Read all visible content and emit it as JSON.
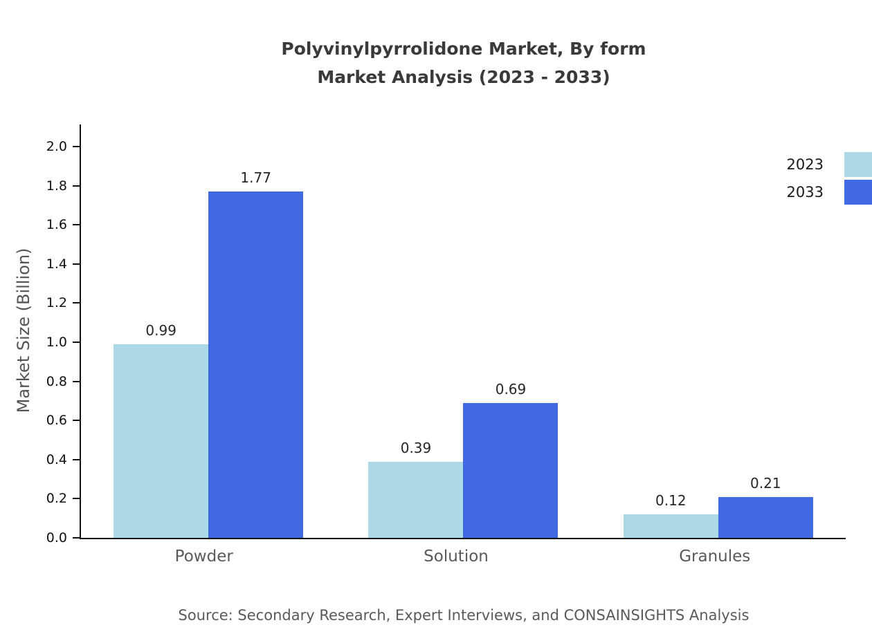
{
  "title": {
    "line1": "Polyvinylpyrrolidone Market, By form",
    "line2": "Market Analysis (2023 - 2033)"
  },
  "source": "Source: Secondary Research, Expert Interviews, and CONSAINSIGHTS Analysis",
  "chart_data": {
    "type": "bar",
    "title": "Polyvinylpyrrolidone Market, By form Market Analysis (2023 - 2033)",
    "categories": [
      "Powder",
      "Solution",
      "Granules"
    ],
    "series": [
      {
        "name": "2023",
        "color": "#ADD8E6",
        "values": [
          0.99,
          0.39,
          0.12
        ]
      },
      {
        "name": "2033",
        "color": "#4169E1",
        "values": [
          1.77,
          0.69,
          0.21
        ]
      }
    ],
    "xlabel": "",
    "ylabel": "Market Size (Billion)",
    "ylim": [
      0,
      2.12
    ],
    "yticks": [
      0.0,
      0.2,
      0.4,
      0.6,
      0.8,
      1.0,
      1.2,
      1.4,
      1.6,
      1.8,
      2.0
    ],
    "value_labels": [
      "0.99",
      "1.77",
      "0.39",
      "0.69",
      "0.12",
      "0.21"
    ],
    "legend_position": "top-right",
    "grid": false
  }
}
